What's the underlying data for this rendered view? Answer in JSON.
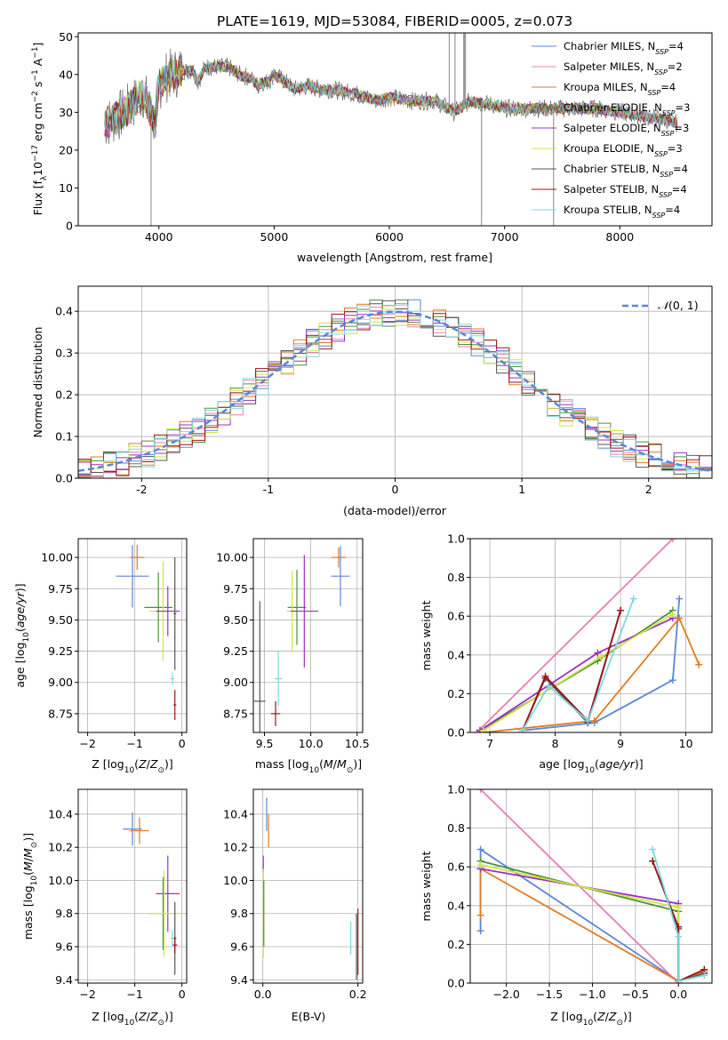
{
  "figure_title": "PLATE=1619, MJD=53084, FIBERID=0005, z=0.073",
  "palette": {
    "Chabrier MILES": "#5b86d8",
    "Salpeter MILES": "#e57fb7",
    "Kroupa MILES": "#e07b20",
    "Chabrier ELODIE": "#4e8f3a",
    "Salpeter ELODIE": "#9b2fc5",
    "Kroupa ELODIE": "#cfe640",
    "Chabrier STELIB": "#555555",
    "Salpeter STELIB": "#9e1313",
    "Kroupa STELIB": "#7fd7e0"
  },
  "chart_data": [
    {
      "id": "spectrum",
      "type": "line",
      "title": "PLATE=1619, MJD=53084, FIBERID=0005, z=0.073",
      "xlabel": "wavelength [Angstrom, rest frame]",
      "ylabel": "Flux [fλ10⁻¹⁷ erg cm⁻² s⁻¹ A⁻¹]",
      "xlim": [
        3300,
        8800
      ],
      "ylim": [
        0,
        51
      ],
      "xticks": [
        4000,
        5000,
        6000,
        7000,
        8000
      ],
      "yticks": [
        0,
        10,
        20,
        30,
        40,
        50
      ],
      "grid": false,
      "legend_position": "upper right",
      "series": [
        {
          "name": "Chabrier MILES, N_SSP=4",
          "legend_main": "Chabrier MILES, N",
          "legend_sub": "SSP",
          "legend_tail": "=4"
        },
        {
          "name": "Salpeter MILES, N_SSP=2",
          "legend_main": "Salpeter MILES, N",
          "legend_sub": "SSP",
          "legend_tail": "=2"
        },
        {
          "name": "Kroupa MILES, N_SSP=4",
          "legend_main": "Kroupa MILES, N",
          "legend_sub": "SSP",
          "legend_tail": "=4"
        },
        {
          "name": "Chabrier ELODIE, N_SSP=3",
          "legend_main": "Chabrier ELODIE, N",
          "legend_sub": "SSP",
          "legend_tail": "=3"
        },
        {
          "name": "Salpeter ELODIE, N_SSP=3",
          "legend_main": "Salpeter ELODIE, N",
          "legend_sub": "SSP",
          "legend_tail": "=3"
        },
        {
          "name": "Kroupa ELODIE, N_SSP=3",
          "legend_main": "Kroupa ELODIE, N",
          "legend_sub": "SSP",
          "legend_tail": "=3"
        },
        {
          "name": "Chabrier STELIB, N_SSP=4",
          "legend_main": "Chabrier STELIB, N",
          "legend_sub": "SSP",
          "legend_tail": "=4"
        },
        {
          "name": "Salpeter STELIB, N_SSP=4",
          "legend_main": "Salpeter STELIB, N",
          "legend_sub": "SSP",
          "legend_tail": "=4"
        },
        {
          "name": "Kroupa STELIB, N_SSP=4",
          "legend_main": "Kroupa STELIB, N",
          "legend_sub": "SSP",
          "legend_tail": "=4"
        }
      ],
      "spectrum_shape": {
        "x": [
          3530,
          3600,
          3700,
          3800,
          3870,
          3930,
          3970,
          4000,
          4050,
          4100,
          4200,
          4300,
          4340,
          4400,
          4500,
          4600,
          4700,
          4800,
          4861,
          4900,
          4950,
          5000,
          5100,
          5175,
          5300,
          5400,
          5500,
          5700,
          5893,
          6000,
          6200,
          6400,
          6563,
          6700,
          6900,
          7000,
          7200,
          7400,
          7600,
          7800,
          8000,
          8200,
          8400,
          8500
        ],
        "y": [
          27,
          28,
          30,
          33,
          35,
          30,
          27,
          37,
          39,
          40,
          41,
          41,
          38,
          42,
          42,
          42,
          40,
          39,
          37,
          38,
          38,
          40,
          38,
          36,
          37,
          36,
          36,
          35,
          33,
          34,
          33,
          33,
          30,
          33,
          32,
          31,
          31,
          31,
          31,
          31,
          30,
          29,
          28,
          27
        ],
        "observed_spikes": [
          {
            "x": 3932,
            "y": 0
          },
          {
            "x": 6520,
            "y": 51
          },
          {
            "x": 6570,
            "y": 51
          },
          {
            "x": 6645,
            "y": 51
          },
          {
            "x": 6650,
            "y": 51
          },
          {
            "x": 6655,
            "y": 51
          },
          {
            "x": 6660,
            "y": 51
          },
          {
            "x": 6800,
            "y": 0
          },
          {
            "x": 7425,
            "y": 0
          }
        ]
      }
    },
    {
      "id": "residuals",
      "type": "line",
      "xlabel": "(data-model)/error",
      "ylabel": "Normed distribution",
      "xlim": [
        -2.5,
        2.5
      ],
      "ylim": [
        0,
        0.46
      ],
      "xticks": [
        -2,
        -1,
        0,
        1,
        2
      ],
      "yticks": [
        0.0,
        0.1,
        0.2,
        0.3,
        0.4
      ],
      "grid": true,
      "legend_position": "upper right",
      "reference_curve": {
        "name": "N(0,1)",
        "style": "dashed"
      }
    },
    {
      "id": "age-vs-Z",
      "type": "scatter",
      "xlabel": "Z [log10(Z/Z☉)]",
      "ylabel": "age [log10(age/yr)]",
      "xlim": [
        -2.2,
        0.1
      ],
      "ylim": [
        8.6,
        10.15
      ],
      "xticks": [
        -2,
        -1,
        0
      ],
      "xtick_labels": [
        "−2",
        "−1",
        "0"
      ],
      "yticks": [
        8.75,
        9.0,
        9.25,
        9.5,
        9.75,
        10.0
      ],
      "grid": true,
      "points": [
        {
          "model": "Chabrier MILES",
          "x": -1.05,
          "xerr": 0.35,
          "y": 9.85,
          "yerr": 0.25
        },
        {
          "model": "Kroupa MILES",
          "x": -0.95,
          "xerr": 0.15,
          "y": 10.0,
          "yerr": 0.1
        },
        {
          "model": "Chabrier ELODIE",
          "x": -0.5,
          "xerr": 0.3,
          "y": 9.6,
          "yerr": 0.28
        },
        {
          "model": "Kroupa ELODIE",
          "x": -0.4,
          "xerr": 0.3,
          "y": 9.57,
          "yerr": 0.4
        },
        {
          "model": "Salpeter ELODIE",
          "x": -0.3,
          "xerr": 0.25,
          "y": 9.57,
          "yerr": 0.2
        },
        {
          "model": "Chabrier STELIB",
          "x": -0.15,
          "xerr": 0.03,
          "y": 9.55,
          "yerr": 0.45
        },
        {
          "model": "Salpeter STELIB",
          "x": -0.15,
          "xerr": 0.03,
          "y": 8.82,
          "yerr": 0.12
        },
        {
          "model": "Kroupa STELIB",
          "x": -0.2,
          "xerr": 0.04,
          "y": 9.03,
          "yerr": 0.05
        }
      ]
    },
    {
      "id": "age-vs-mass",
      "type": "scatter",
      "xlabel": "mass [log10(M/M☉)]",
      "xlim": [
        9.38,
        10.56
      ],
      "ylim": [
        8.6,
        10.15
      ],
      "xticks": [
        9.5,
        10.0,
        10.5
      ],
      "yticks": [
        8.75,
        9.0,
        9.25,
        9.5,
        9.75,
        10.0
      ],
      "grid": true,
      "points": [
        {
          "model": "Chabrier MILES",
          "x": 10.32,
          "xerr": 0.1,
          "y": 9.85,
          "yerr": 0.24
        },
        {
          "model": "Kroupa MILES",
          "x": 10.3,
          "xerr": 0.08,
          "y": 10.0,
          "yerr": 0.08
        },
        {
          "model": "Chabrier ELODIE",
          "x": 9.85,
          "xerr": 0.1,
          "y": 9.6,
          "yerr": 0.3
        },
        {
          "model": "Kroupa ELODIE",
          "x": 9.8,
          "xerr": 0.06,
          "y": 9.57,
          "yerr": 0.32
        },
        {
          "model": "Salpeter ELODIE",
          "x": 9.93,
          "xerr": 0.15,
          "y": 9.57,
          "yerr": 0.45
        },
        {
          "model": "Chabrier STELIB",
          "x": 9.45,
          "xerr": 0.06,
          "y": 8.85,
          "yerr": 0.8
        },
        {
          "model": "Salpeter STELIB",
          "x": 9.62,
          "xerr": 0.05,
          "y": 8.75,
          "yerr": 0.1
        },
        {
          "model": "Kroupa STELIB",
          "x": 9.65,
          "xerr": 0.04,
          "y": 9.03,
          "yerr": 0.22
        }
      ]
    },
    {
      "id": "weight-vs-age",
      "type": "line",
      "xlabel": "age [log10(age/yr)]",
      "ylabel": "mass weight",
      "xlim": [
        6.7,
        10.4
      ],
      "ylim": [
        0,
        1
      ],
      "xticks": [
        7,
        8,
        9,
        10
      ],
      "yticks": [
        0.0,
        0.2,
        0.4,
        0.6,
        0.8,
        1.0
      ],
      "grid": true,
      "series": [
        {
          "model": "Chabrier MILES",
          "x": [
            7.5,
            8.6,
            9.8,
            9.9
          ],
          "y": [
            0.01,
            0.05,
            0.27,
            0.69
          ]
        },
        {
          "model": "Salpeter MILES",
          "x": [
            6.8,
            9.8
          ],
          "y": [
            0.0,
            1.0
          ]
        },
        {
          "model": "Kroupa MILES",
          "x": [
            6.9,
            8.6,
            9.9,
            10.2
          ],
          "y": [
            0.0,
            0.06,
            0.59,
            0.35
          ]
        },
        {
          "model": "Chabrier ELODIE",
          "x": [
            6.85,
            8.65,
            9.8
          ],
          "y": [
            0.01,
            0.37,
            0.63
          ]
        },
        {
          "model": "Salpeter ELODIE",
          "x": [
            6.85,
            8.65,
            9.8
          ],
          "y": [
            0.01,
            0.41,
            0.59
          ]
        },
        {
          "model": "Kroupa ELODIE",
          "x": [
            6.9,
            8.7,
            9.8
          ],
          "y": [
            0.01,
            0.39,
            0.61
          ]
        },
        {
          "model": "Chabrier STELIB",
          "x": [
            7.5,
            7.85,
            8.5,
            9.0
          ],
          "y": [
            0.01,
            0.28,
            0.05,
            0.63
          ]
        },
        {
          "model": "Salpeter STELIB",
          "x": [
            7.5,
            7.85,
            8.5,
            9.0
          ],
          "y": [
            0.01,
            0.29,
            0.06,
            0.63
          ]
        },
        {
          "model": "Kroupa STELIB",
          "x": [
            7.5,
            7.9,
            8.5,
            9.2
          ],
          "y": [
            0.01,
            0.24,
            0.06,
            0.69
          ]
        }
      ]
    },
    {
      "id": "mass-vs-Z",
      "type": "scatter",
      "xlabel": "Z [log10(Z/Z☉)]",
      "ylabel": "mass [log10(M/M☉)]",
      "xlim": [
        -2.2,
        0.1
      ],
      "ylim": [
        9.38,
        10.55
      ],
      "xticks": [
        -2,
        -1,
        0
      ],
      "xtick_labels": [
        "−2",
        "−1",
        "0"
      ],
      "yticks": [
        9.4,
        9.6,
        9.8,
        10.0,
        10.2,
        10.4
      ],
      "grid": true,
      "points": [
        {
          "model": "Chabrier MILES",
          "x": -1.05,
          "xerr": 0.2,
          "y": 10.31,
          "yerr": 0.1
        },
        {
          "model": "Kroupa MILES",
          "x": -0.9,
          "xerr": 0.2,
          "y": 10.3,
          "yerr": 0.08
        },
        {
          "model": "Salpeter ELODIE",
          "x": -0.3,
          "xerr": 0.25,
          "y": 9.92,
          "yerr": 0.23
        },
        {
          "model": "Chabrier ELODIE",
          "x": -0.4,
          "xerr": 0.03,
          "y": 9.8,
          "yerr": 0.22
        },
        {
          "model": "Kroupa ELODIE",
          "x": -0.38,
          "xerr": 0.3,
          "y": 9.8,
          "yerr": 0.26
        },
        {
          "model": "Chabrier STELIB",
          "x": -0.15,
          "xerr": 0.03,
          "y": 9.65,
          "yerr": 0.22
        },
        {
          "model": "Salpeter STELIB",
          "x": -0.15,
          "xerr": 0.05,
          "y": 9.61,
          "yerr": 0.05
        },
        {
          "model": "Kroupa STELIB",
          "x": -0.2,
          "xerr": 0.03,
          "y": 9.65,
          "yerr": 0.05
        }
      ]
    },
    {
      "id": "mass-vs-ebv",
      "type": "scatter",
      "xlabel": "E(B-V)",
      "xlim": [
        -0.02,
        0.21
      ],
      "ylim": [
        9.38,
        10.55
      ],
      "xticks": [
        0.0,
        0.2
      ],
      "xtick_labels": [
        "0.0",
        "0.2"
      ],
      "yticks": [
        9.4,
        9.6,
        9.8,
        10.0,
        10.2,
        10.4
      ],
      "grid": true,
      "points": [
        {
          "model": "Chabrier MILES",
          "x": 0.008,
          "y": 10.4,
          "yerr": 0.1
        },
        {
          "model": "Kroupa MILES",
          "x": 0.012,
          "y": 10.3,
          "yerr": 0.1
        },
        {
          "model": "Salpeter ELODIE",
          "x": 0.001,
          "y": 10.1,
          "yerr": 0.05
        },
        {
          "model": "Kroupa ELODIE",
          "x": 0.001,
          "y": 9.8,
          "yerr": 0.27
        },
        {
          "model": "Chabrier ELODIE",
          "x": 0.002,
          "y": 9.8,
          "yerr": 0.2
        },
        {
          "model": "Kroupa STELIB",
          "x": 0.185,
          "y": 9.65,
          "yerr": 0.1
        },
        {
          "model": "Chabrier STELIB",
          "x": 0.197,
          "y": 9.6,
          "yerr": 0.2
        },
        {
          "model": "Salpeter STELIB",
          "x": 0.2,
          "y": 9.63,
          "yerr": 0.2
        }
      ]
    },
    {
      "id": "weight-vs-Z",
      "type": "line",
      "xlabel": "Z [log10(Z/Z☉)]",
      "ylabel": "mass weight",
      "xlim": [
        -2.42,
        0.39
      ],
      "ylim": [
        0,
        1
      ],
      "xticks": [
        -2.0,
        -1.5,
        -1.0,
        -0.5,
        0.0
      ],
      "xtick_labels": [
        "−2.0",
        "−1.5",
        "−1.0",
        "−0.5",
        "0.0"
      ],
      "yticks": [
        0.0,
        0.2,
        0.4,
        0.6,
        0.8,
        1.0
      ],
      "grid": true,
      "series": [
        {
          "model": "Chabrier MILES",
          "x": [
            -2.3,
            -2.3,
            0.0,
            0.3
          ],
          "y": [
            0.27,
            0.69,
            0.01,
            0.05
          ]
        },
        {
          "model": "Salpeter MILES",
          "x": [
            -2.3,
            0.0
          ],
          "y": [
            1.0,
            0.0
          ]
        },
        {
          "model": "Kroupa MILES",
          "x": [
            -2.3,
            -2.3,
            0.0,
            0.3
          ],
          "y": [
            0.35,
            0.59,
            0.01,
            0.06
          ]
        },
        {
          "model": "Chabrier ELODIE",
          "x": [
            -2.3,
            0.0,
            0.0
          ],
          "y": [
            0.63,
            0.37,
            0.01
          ]
        },
        {
          "model": "Salpeter ELODIE",
          "x": [
            -2.3,
            0.0,
            0.0
          ],
          "y": [
            0.59,
            0.41,
            0.01
          ]
        },
        {
          "model": "Kroupa ELODIE",
          "x": [
            -2.3,
            0.0,
            0.0
          ],
          "y": [
            0.61,
            0.39,
            0.01
          ]
        },
        {
          "model": "Chabrier STELIB",
          "x": [
            -0.3,
            0.0,
            0.0,
            0.3
          ],
          "y": [
            0.63,
            0.28,
            0.01,
            0.05
          ]
        },
        {
          "model": "Salpeter STELIB",
          "x": [
            -0.3,
            0.0,
            0.0,
            0.3
          ],
          "y": [
            0.63,
            0.29,
            0.01,
            0.07
          ]
        },
        {
          "model": "Kroupa STELIB",
          "x": [
            -0.3,
            0.0,
            0.0,
            0.3
          ],
          "y": [
            0.69,
            0.24,
            0.01,
            0.04
          ]
        }
      ]
    }
  ]
}
